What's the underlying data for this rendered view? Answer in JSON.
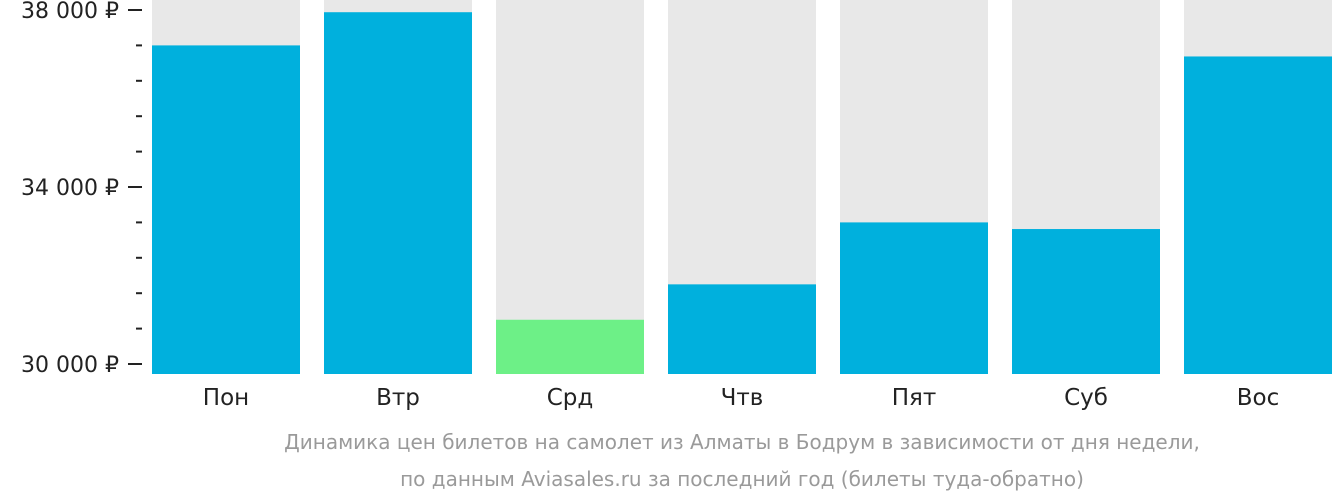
{
  "chart_data": {
    "type": "bar",
    "categories": [
      "Пон",
      "Втр",
      "Срд",
      "Чтв",
      "Пят",
      "Суб",
      "Вос"
    ],
    "values": [
      37200,
      37950,
      31000,
      31800,
      33200,
      33050,
      36950
    ],
    "ylim": [
      30000,
      38000
    ],
    "yticks": [
      {
        "value": 30000,
        "label": "30 000 ₽"
      },
      {
        "value": 34000,
        "label": "34 000 ₽"
      },
      {
        "value": 38000,
        "label": "38 000 ₽"
      }
    ],
    "minor_tick_step": 800,
    "colors": {
      "bar": "#00b0dd",
      "highlight": "#6df087",
      "background_bar": "#e8e8e8",
      "axis": "#222222"
    },
    "highlight_index": 2
  },
  "caption": {
    "line1": "Динамика цен билетов на самолет из Алматы в Бодрум в зависимости от дня недели,",
    "line2": "по данным Aviasales.ru за последний год (билеты туда-обратно)"
  }
}
